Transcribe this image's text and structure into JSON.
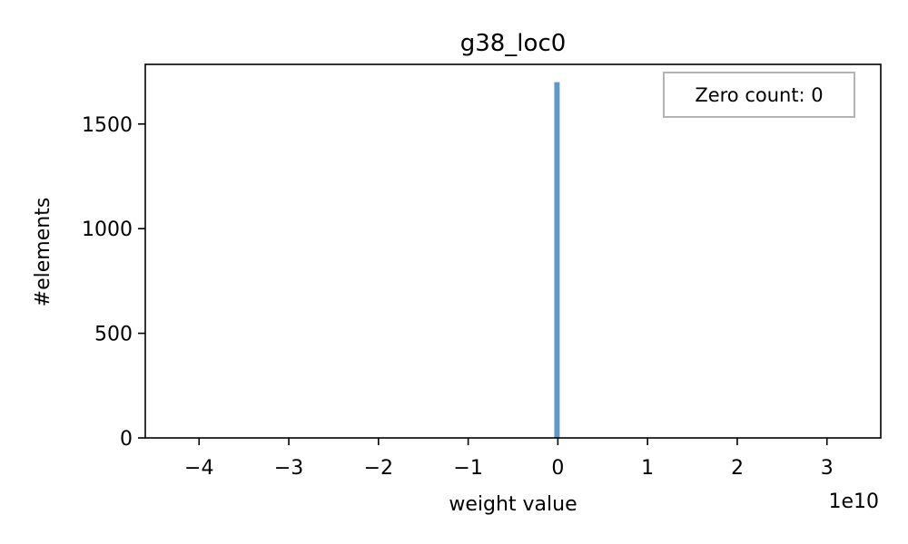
{
  "chart_data": {
    "type": "bar",
    "title": "g38_loc0",
    "xlabel": "weight value",
    "ylabel": "#elements",
    "x_offset_label": "1e10",
    "xlim": [
      -4.6,
      3.6
    ],
    "ylim": [
      0,
      1785
    ],
    "xticks": [
      -4,
      -3,
      -2,
      -1,
      0,
      1,
      2,
      3
    ],
    "xtick_labels": [
      "−4",
      "−3",
      "−2",
      "−1",
      "0",
      "1",
      "2",
      "3"
    ],
    "yticks": [
      0,
      500,
      1000,
      1500
    ],
    "ytick_labels": [
      "0",
      "500",
      "1000",
      "1500"
    ],
    "bars": [
      {
        "x0": -0.04,
        "x1": 0.02,
        "value": 1700
      }
    ],
    "bar_color": "#5b9bc6",
    "annotation": {
      "text": "Zero count: 0",
      "placement": "top-right"
    },
    "grid": false
  }
}
